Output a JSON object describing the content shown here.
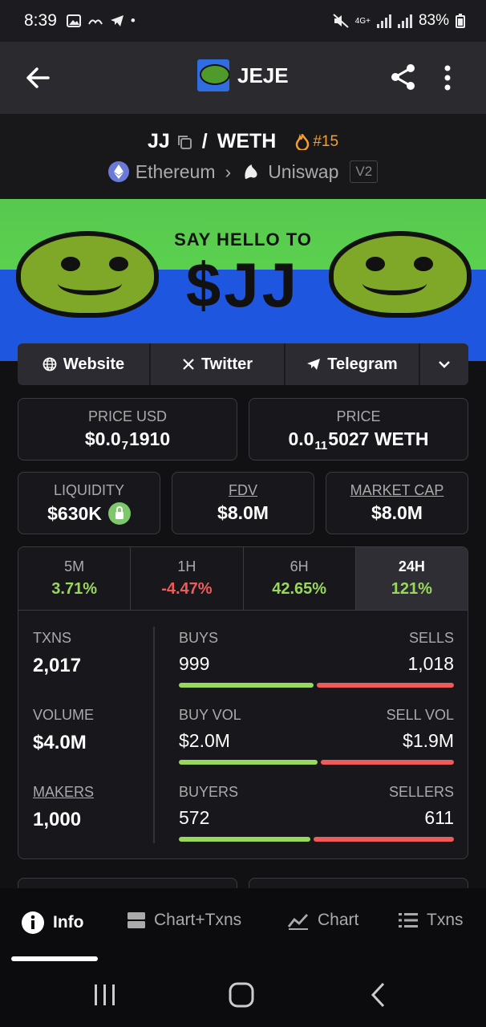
{
  "status_bar": {
    "time": "8:39",
    "battery": "83%",
    "network": "4G+"
  },
  "header": {
    "title": "JEJE"
  },
  "pair": {
    "base": "JJ",
    "separator": "/",
    "quote": "WETH",
    "rank": "#15",
    "chain": "Ethereum",
    "dex": "Uniswap",
    "version": "V2"
  },
  "banner": {
    "line1": "SAY HELLO TO",
    "line2": "$JJ"
  },
  "links": {
    "website": "Website",
    "twitter": "Twitter",
    "telegram": "Telegram"
  },
  "price_usd": {
    "label": "PRICE USD",
    "prefix": "$0.0",
    "zeros": "7",
    "digits": "1910"
  },
  "price_native": {
    "label": "PRICE",
    "prefix": "0.0",
    "zeros": "11",
    "digits": "5027 WETH"
  },
  "liquidity": {
    "label": "LIQUIDITY",
    "value": "$630K"
  },
  "fdv": {
    "label": "FDV",
    "value": "$8.0M"
  },
  "market_cap": {
    "label": "MARKET CAP",
    "value": "$8.0M"
  },
  "changes": [
    {
      "period": "5M",
      "value": "3.71%"
    },
    {
      "period": "1H",
      "value": "-4.47%"
    },
    {
      "period": "6H",
      "value": "42.65%"
    },
    {
      "period": "24H",
      "value": "121%"
    }
  ],
  "stats": {
    "txns": {
      "label": "TXNS",
      "value": "2,017",
      "left_label": "BUYS",
      "left_value": "999",
      "right_label": "SELLS",
      "right_value": "1,018",
      "ratio": 0.495
    },
    "volume": {
      "label": "VOLUME",
      "value": "$4.0M",
      "left_label": "BUY VOL",
      "left_value": "$2.0M",
      "right_label": "SELL VOL",
      "right_value": "$1.9M",
      "ratio": 0.51
    },
    "makers": {
      "label": "MAKERS",
      "value": "1,000",
      "left_label": "BUYERS",
      "left_value": "572",
      "right_label": "SELLERS",
      "right_value": "611",
      "ratio": 0.483
    }
  },
  "bottom_tabs": [
    "Info",
    "Chart+Txns",
    "Chart",
    "Txns"
  ],
  "colors": {
    "green": "#9ad85c",
    "red": "#ef5b5b",
    "accent": "#f59e2c"
  }
}
